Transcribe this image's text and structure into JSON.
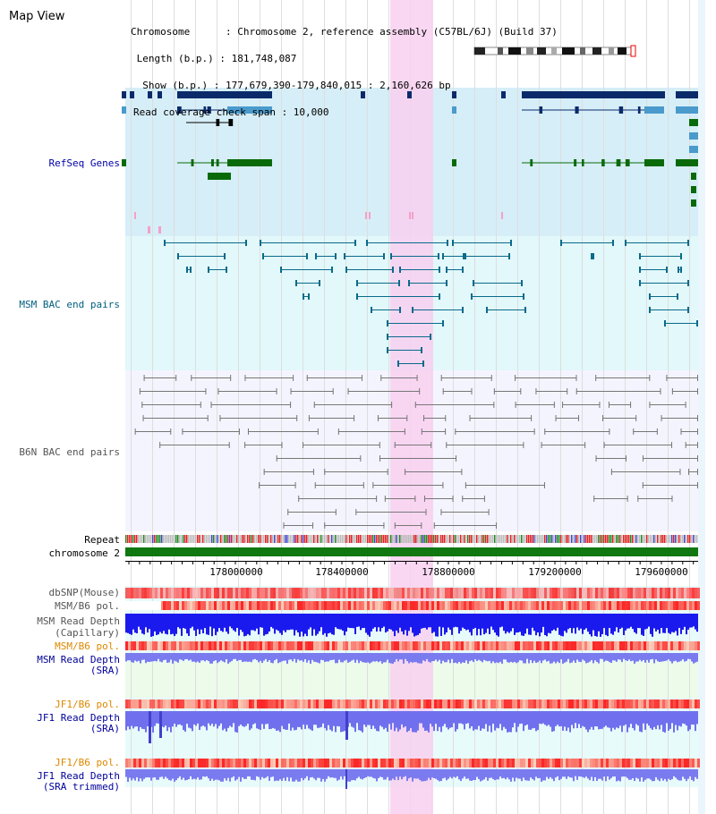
{
  "view_title": "Map View",
  "header": {
    "chromosome_line": "Chromosome      : Chromosome 2, reference assembly (C57BL/6J) (Build 37)",
    "length_line": " Length (b.p.) : 181,748,087",
    "show_line": "  Show (b.p.) : 177,679,390-179,840,015 : 2,160,626 bp",
    "coverage_line": "Read coverage check span : 10,000"
  },
  "tracks": {
    "refseq": "RefSeq Genes",
    "msm_bac": "MSM BAC end pairs",
    "b6n_bac": "B6N BAC end pairs",
    "repeat": "Repeat",
    "chromosome": "chromosome 2",
    "dbsnp": "dbSNP(Mouse)",
    "msm_b6_pol_1": "MSM/B6 pol.",
    "msm_depth_cap_1": "MSM Read Depth",
    "msm_depth_cap_2": "(Capillary)",
    "msm_b6_pol_2": "MSM/B6 pol.",
    "msm_depth_sra_1": "MSM Read Depth",
    "msm_depth_sra_2": "(SRA)",
    "jf1_b6_pol_1": "JF1/B6 pol.",
    "jf1_depth_sra_1": "JF1 Read Depth",
    "jf1_depth_sra_2": "(SRA)",
    "jf1_b6_pol_2": "JF1/B6 pol.",
    "jf1_depth_trim_1": "JF1 Read Depth",
    "jf1_depth_trim_2": "(SRA trimmed)"
  },
  "axis_ticks": [
    "178000000",
    "178400000",
    "178800000",
    "179200000",
    "179600000"
  ],
  "colors": {
    "refseq_label": "#0000aa",
    "msm_label": "#006080",
    "b6n_label": "#555555",
    "pol_label": "#dd8800",
    "depth_label": "#000099",
    "highlight": "#f8d0f0",
    "gene_dark": "#0a2a6a",
    "gene_light": "#4a9acc",
    "gene_green": "#0a6a0a"
  }
}
